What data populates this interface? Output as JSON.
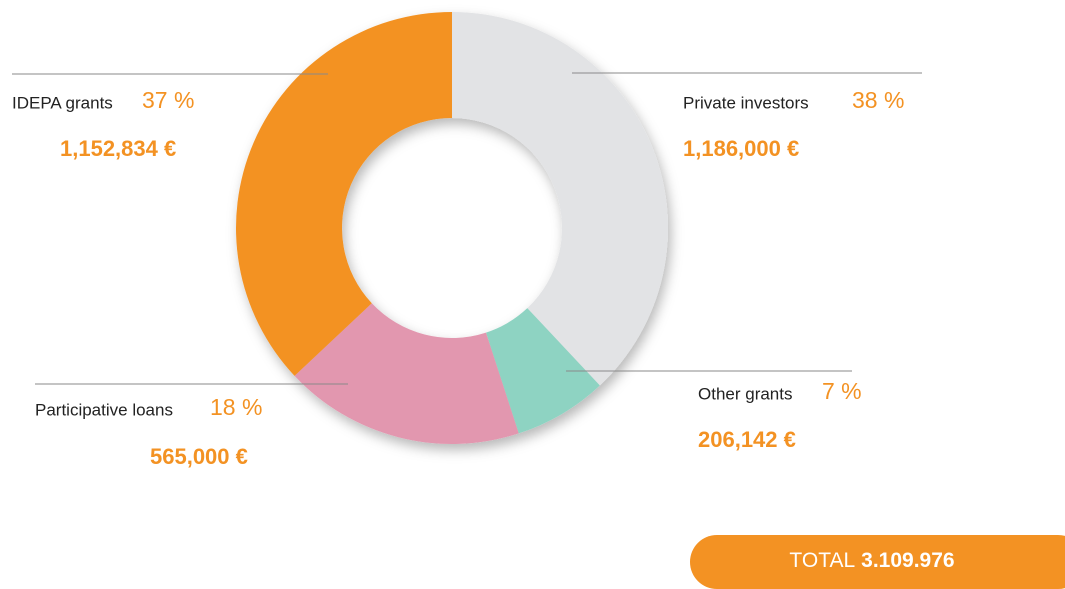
{
  "chart_data": {
    "type": "pie",
    "donut": true,
    "categories": [
      "Private investors",
      "Other grants",
      "Participative loans",
      "IDEPA grants"
    ],
    "values": [
      38,
      7,
      18,
      37
    ],
    "value_labels": [
      "38 %",
      "7 %",
      "18 %",
      "37 %"
    ],
    "amounts": [
      "1,186,000 €",
      "206,142 €",
      "565,000 €",
      "1,152,834 €"
    ],
    "colors": [
      "#e2e3e5",
      "#8ed3c2",
      "#e297af",
      "#f39223"
    ],
    "total_label": "TOTAL",
    "total_value": "3.109.976"
  }
}
